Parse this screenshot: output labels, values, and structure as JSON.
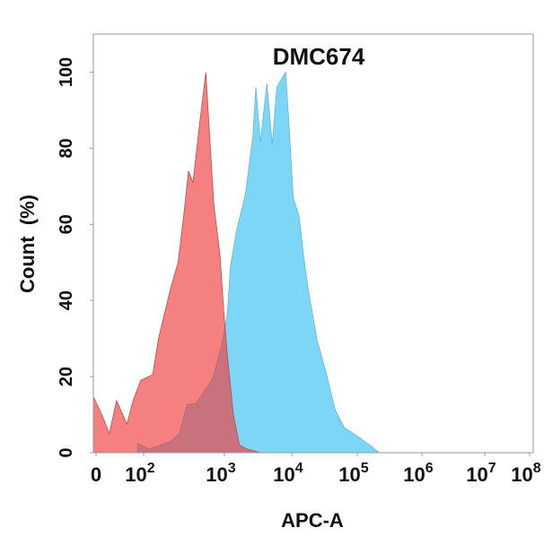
{
  "chart_data": {
    "type": "area",
    "title": "DMC674",
    "xlabel": "APC-A",
    "ylabel": "Count  (%)",
    "x_scale": "biexponential",
    "xlim": [
      0,
      100000000
    ],
    "ylim": [
      0,
      110
    ],
    "x_ticks": [
      {
        "value": 0,
        "base": "0",
        "exp": ""
      },
      {
        "value": 100,
        "base": "10",
        "exp": "2"
      },
      {
        "value": 1000,
        "base": "10",
        "exp": "3"
      },
      {
        "value": 10000,
        "base": "10",
        "exp": "4"
      },
      {
        "value": 100000,
        "base": "10",
        "exp": "5"
      },
      {
        "value": 1000000,
        "base": "10",
        "exp": "6"
      },
      {
        "value": 10000000,
        "base": "10",
        "exp": "7"
      },
      {
        "value": 100000000,
        "base": "10",
        "exp": "8"
      }
    ],
    "y_ticks": [
      "0",
      "20",
      "40",
      "60",
      "80",
      "100"
    ],
    "grid": false,
    "legend": "none",
    "series": [
      {
        "color": "#7dd6f5",
        "x": [
          87,
          119,
          215,
          278,
          344,
          444,
          711,
          918,
          1107,
          1230,
          1500,
          2050,
          2650,
          2930,
          3420,
          4270,
          5140,
          5990,
          8150,
          9030,
          10550,
          13000,
          15200,
          17800,
          24400,
          33500,
          45900,
          63000,
          107000,
          158000,
          220000
        ],
        "y": [
          2.4,
          1,
          3,
          5,
          12.6,
          13,
          19.4,
          28,
          36.6,
          49,
          58,
          68,
          83,
          96,
          81.6,
          97,
          81,
          96,
          100,
          87,
          67,
          62,
          51.5,
          43,
          29.5,
          21,
          11.3,
          6.6,
          4,
          1.9,
          0
        ]
      },
      {
        "color": "#f03c3c",
        "x": [
          0,
          12,
          28,
          43,
          65,
          78,
          94,
          129,
          153,
          215,
          267,
          316,
          359,
          408,
          485,
          589,
          681,
          741,
          880,
          982,
          1107,
          1360,
          1670,
          2150,
          3420
        ],
        "y": [
          14.7,
          10,
          5,
          13.7,
          7.5,
          13.7,
          19,
          20.5,
          30,
          43,
          50,
          63,
          74,
          71,
          85,
          100,
          77.5,
          65,
          52,
          37,
          25.5,
          10,
          2,
          1,
          0
        ]
      }
    ]
  }
}
